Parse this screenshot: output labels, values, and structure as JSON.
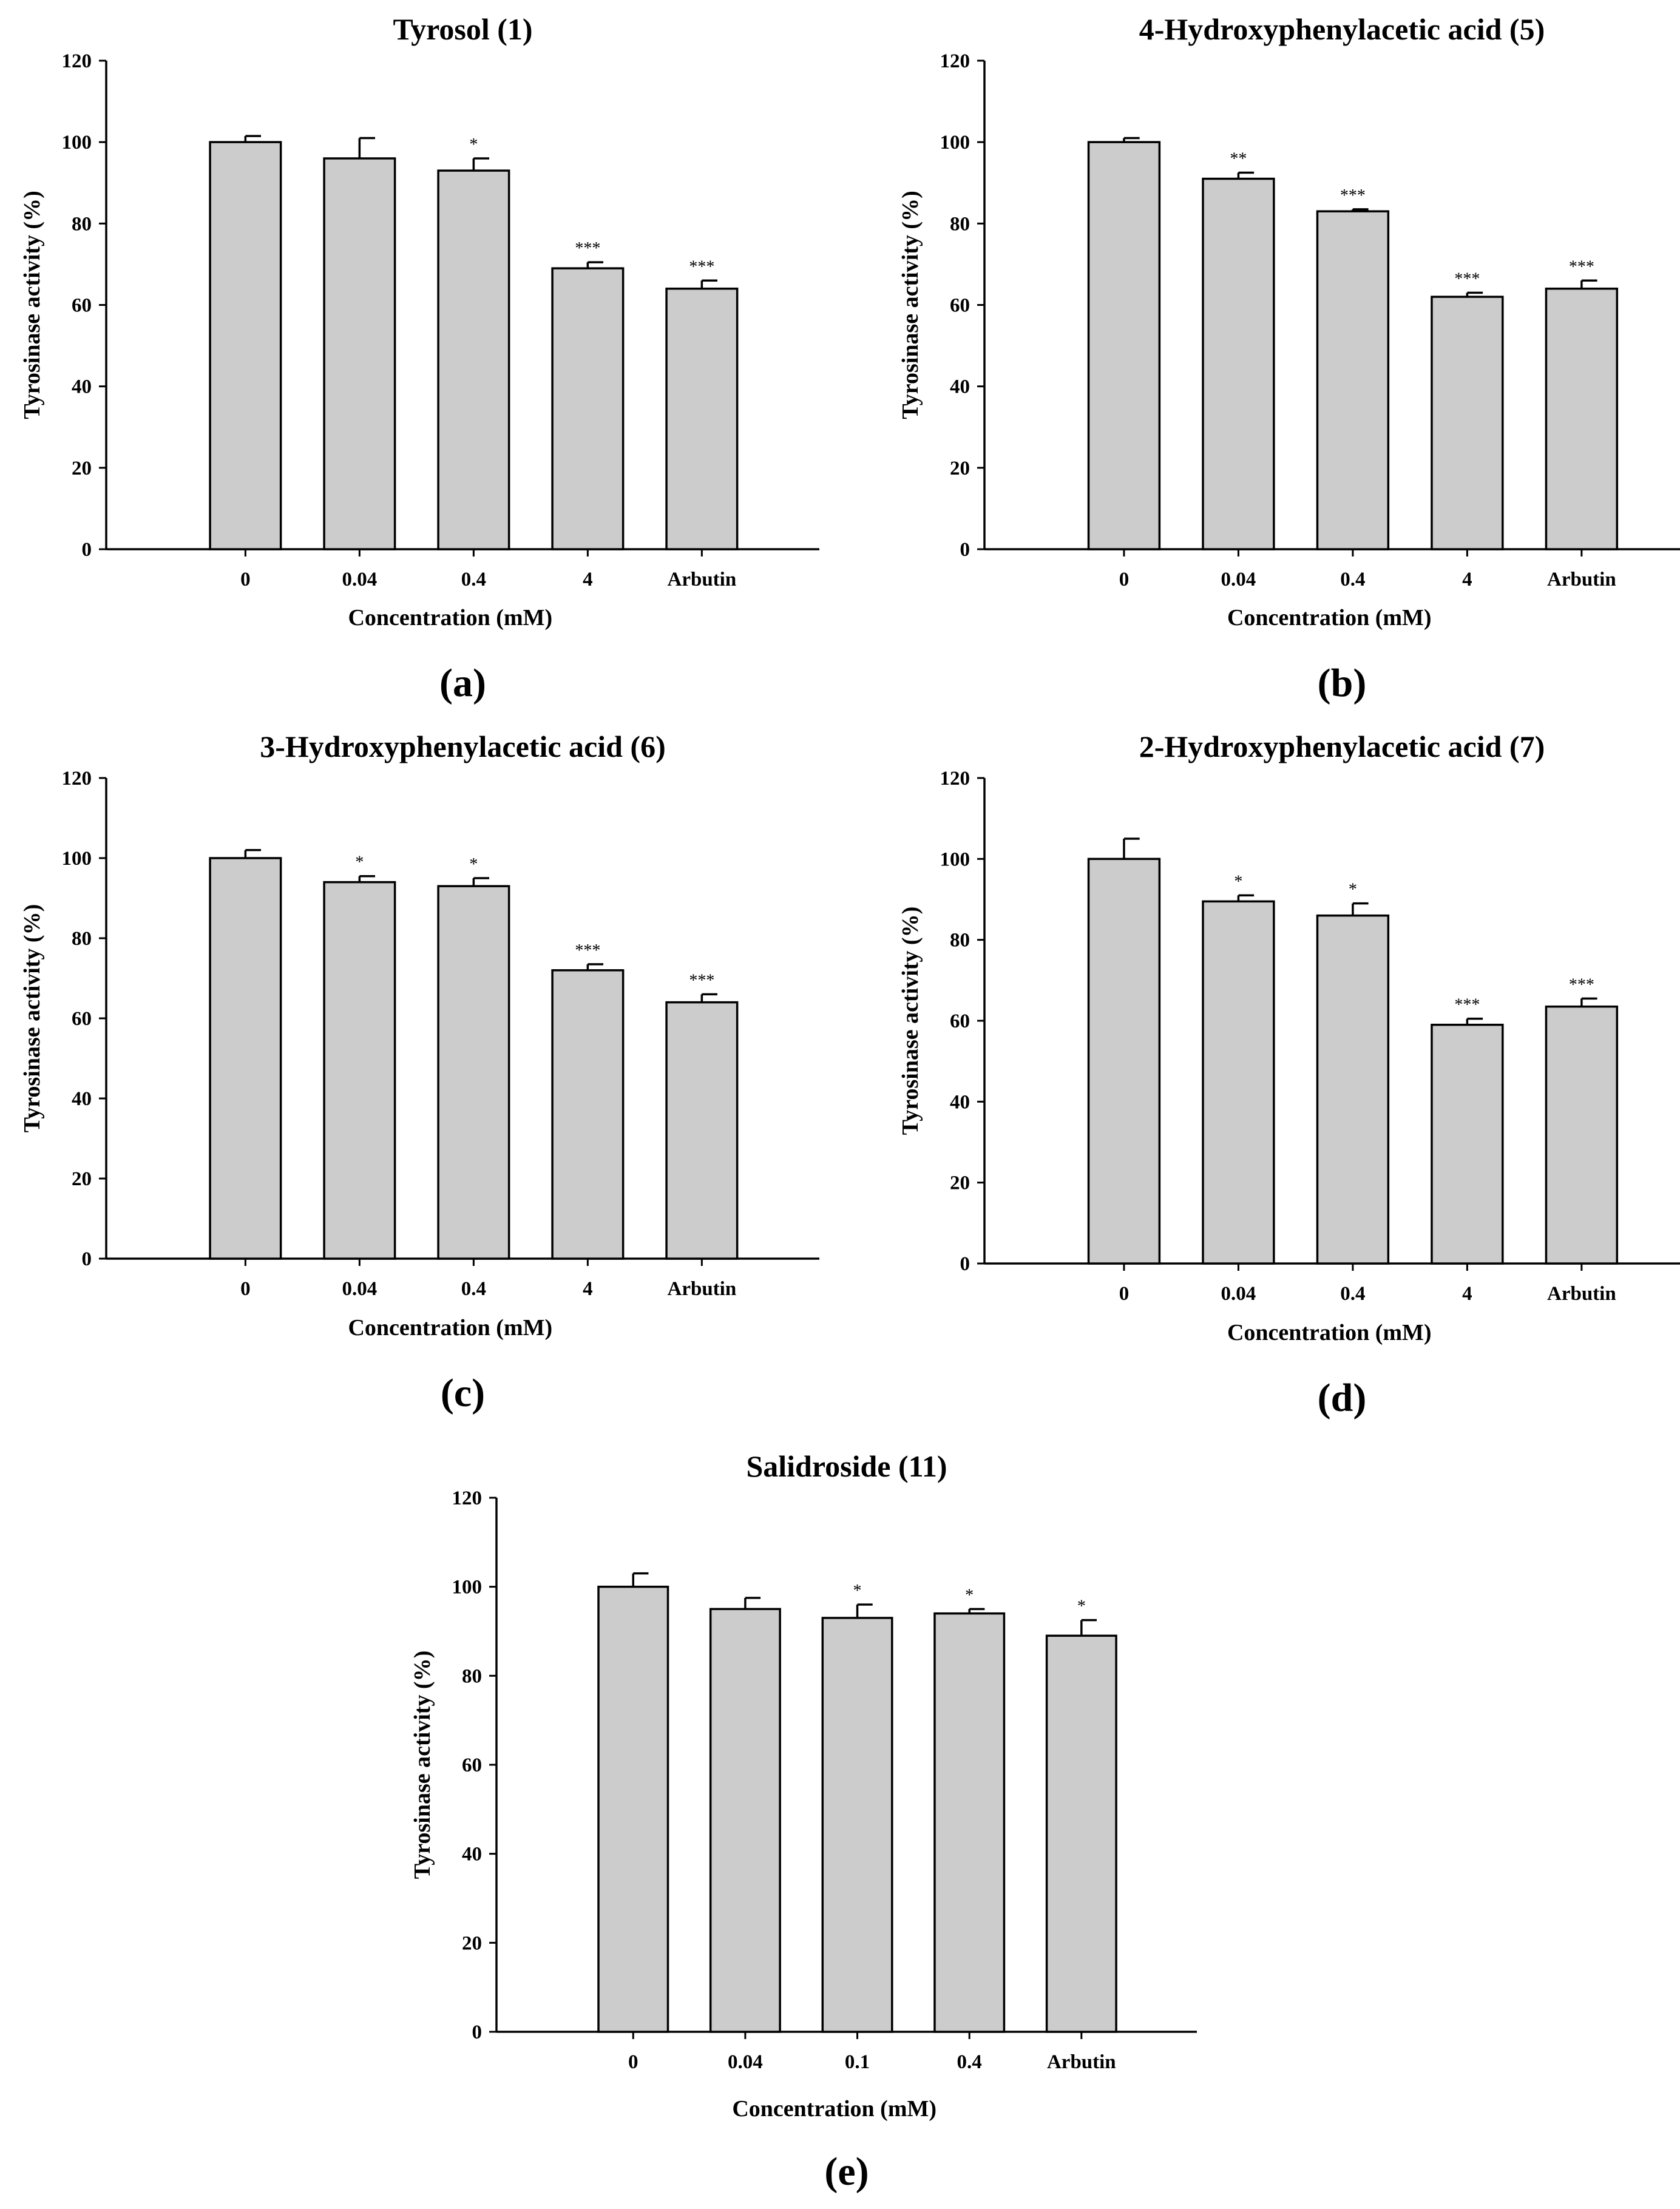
{
  "chart_data": [
    {
      "type": "bar",
      "title": "Tyrosol (1)",
      "panel_label": "(a)",
      "xlabel": "Concentration (mM)",
      "ylabel": "Tyrosinase activity (%)",
      "ylim": [
        0,
        120
      ],
      "yticks": [
        "0",
        "20",
        "40",
        "60",
        "80",
        "100",
        "120"
      ],
      "categories": [
        "0",
        "0.04",
        "0.4",
        "4",
        "Arbutin"
      ],
      "values": [
        100,
        96,
        93,
        69,
        64
      ],
      "errors": [
        1.5,
        5,
        3,
        1.5,
        2
      ],
      "significance": [
        "",
        "",
        "*",
        "***",
        "***"
      ]
    },
    {
      "type": "bar",
      "title": "4-Hydroxyphenylacetic acid (5)",
      "panel_label": "(b)",
      "xlabel": "Concentration (mM)",
      "ylabel": "Tyrosinase activity (%)",
      "ylim": [
        0,
        120
      ],
      "yticks": [
        "0",
        "20",
        "40",
        "60",
        "80",
        "100",
        "120"
      ],
      "categories": [
        "0",
        "0.04",
        "0.4",
        "4",
        "Arbutin"
      ],
      "values": [
        100,
        91,
        83,
        62,
        64
      ],
      "errors": [
        1,
        1.5,
        0.5,
        1,
        2
      ],
      "significance": [
        "",
        "**",
        "***",
        "***",
        "***"
      ]
    },
    {
      "type": "bar",
      "title": "3-Hydroxyphenylacetic acid (6)",
      "panel_label": "(c)",
      "xlabel": "Concentration (mM)",
      "ylabel": "Tyrosinase activity (%)",
      "ylim": [
        0,
        120
      ],
      "yticks": [
        "0",
        "20",
        "40",
        "60",
        "80",
        "100",
        "120"
      ],
      "categories": [
        "0",
        "0.04",
        "0.4",
        "4",
        "Arbutin"
      ],
      "values": [
        100,
        94,
        93,
        72,
        64
      ],
      "errors": [
        2,
        1.5,
        2,
        1.5,
        2
      ],
      "significance": [
        "",
        "*",
        "*",
        "***",
        "***"
      ]
    },
    {
      "type": "bar",
      "title": "2-Hydroxyphenylacetic acid (7)",
      "panel_label": "(d)",
      "xlabel": "Concentration (mM)",
      "ylabel": "Tyrosinase activity (%)",
      "ylim": [
        0,
        120
      ],
      "yticks": [
        "0",
        "20",
        "40",
        "60",
        "80",
        "100",
        "120"
      ],
      "categories": [
        "0",
        "0.04",
        "0.4",
        "4",
        "Arbutin"
      ],
      "values": [
        100,
        89.5,
        86,
        59,
        63.5
      ],
      "errors": [
        5,
        1.5,
        3,
        1.5,
        2
      ],
      "significance": [
        "",
        "*",
        "*",
        "***",
        "***"
      ]
    },
    {
      "type": "bar",
      "title": "Salidroside (11)",
      "panel_label": "(e)",
      "xlabel": "Concentration (mM)",
      "ylabel": "Tyrosinase activity (%)",
      "ylim": [
        0,
        120
      ],
      "yticks": [
        "0",
        "20",
        "40",
        "60",
        "80",
        "100",
        "120"
      ],
      "categories": [
        "0",
        "0.04",
        "0.1",
        "0.4",
        "Arbutin"
      ],
      "values": [
        100,
        95,
        93,
        94,
        89
      ],
      "errors": [
        3,
        2.5,
        3,
        1,
        3.5
      ],
      "significance": [
        "",
        "",
        "*",
        "*",
        "*"
      ]
    }
  ]
}
